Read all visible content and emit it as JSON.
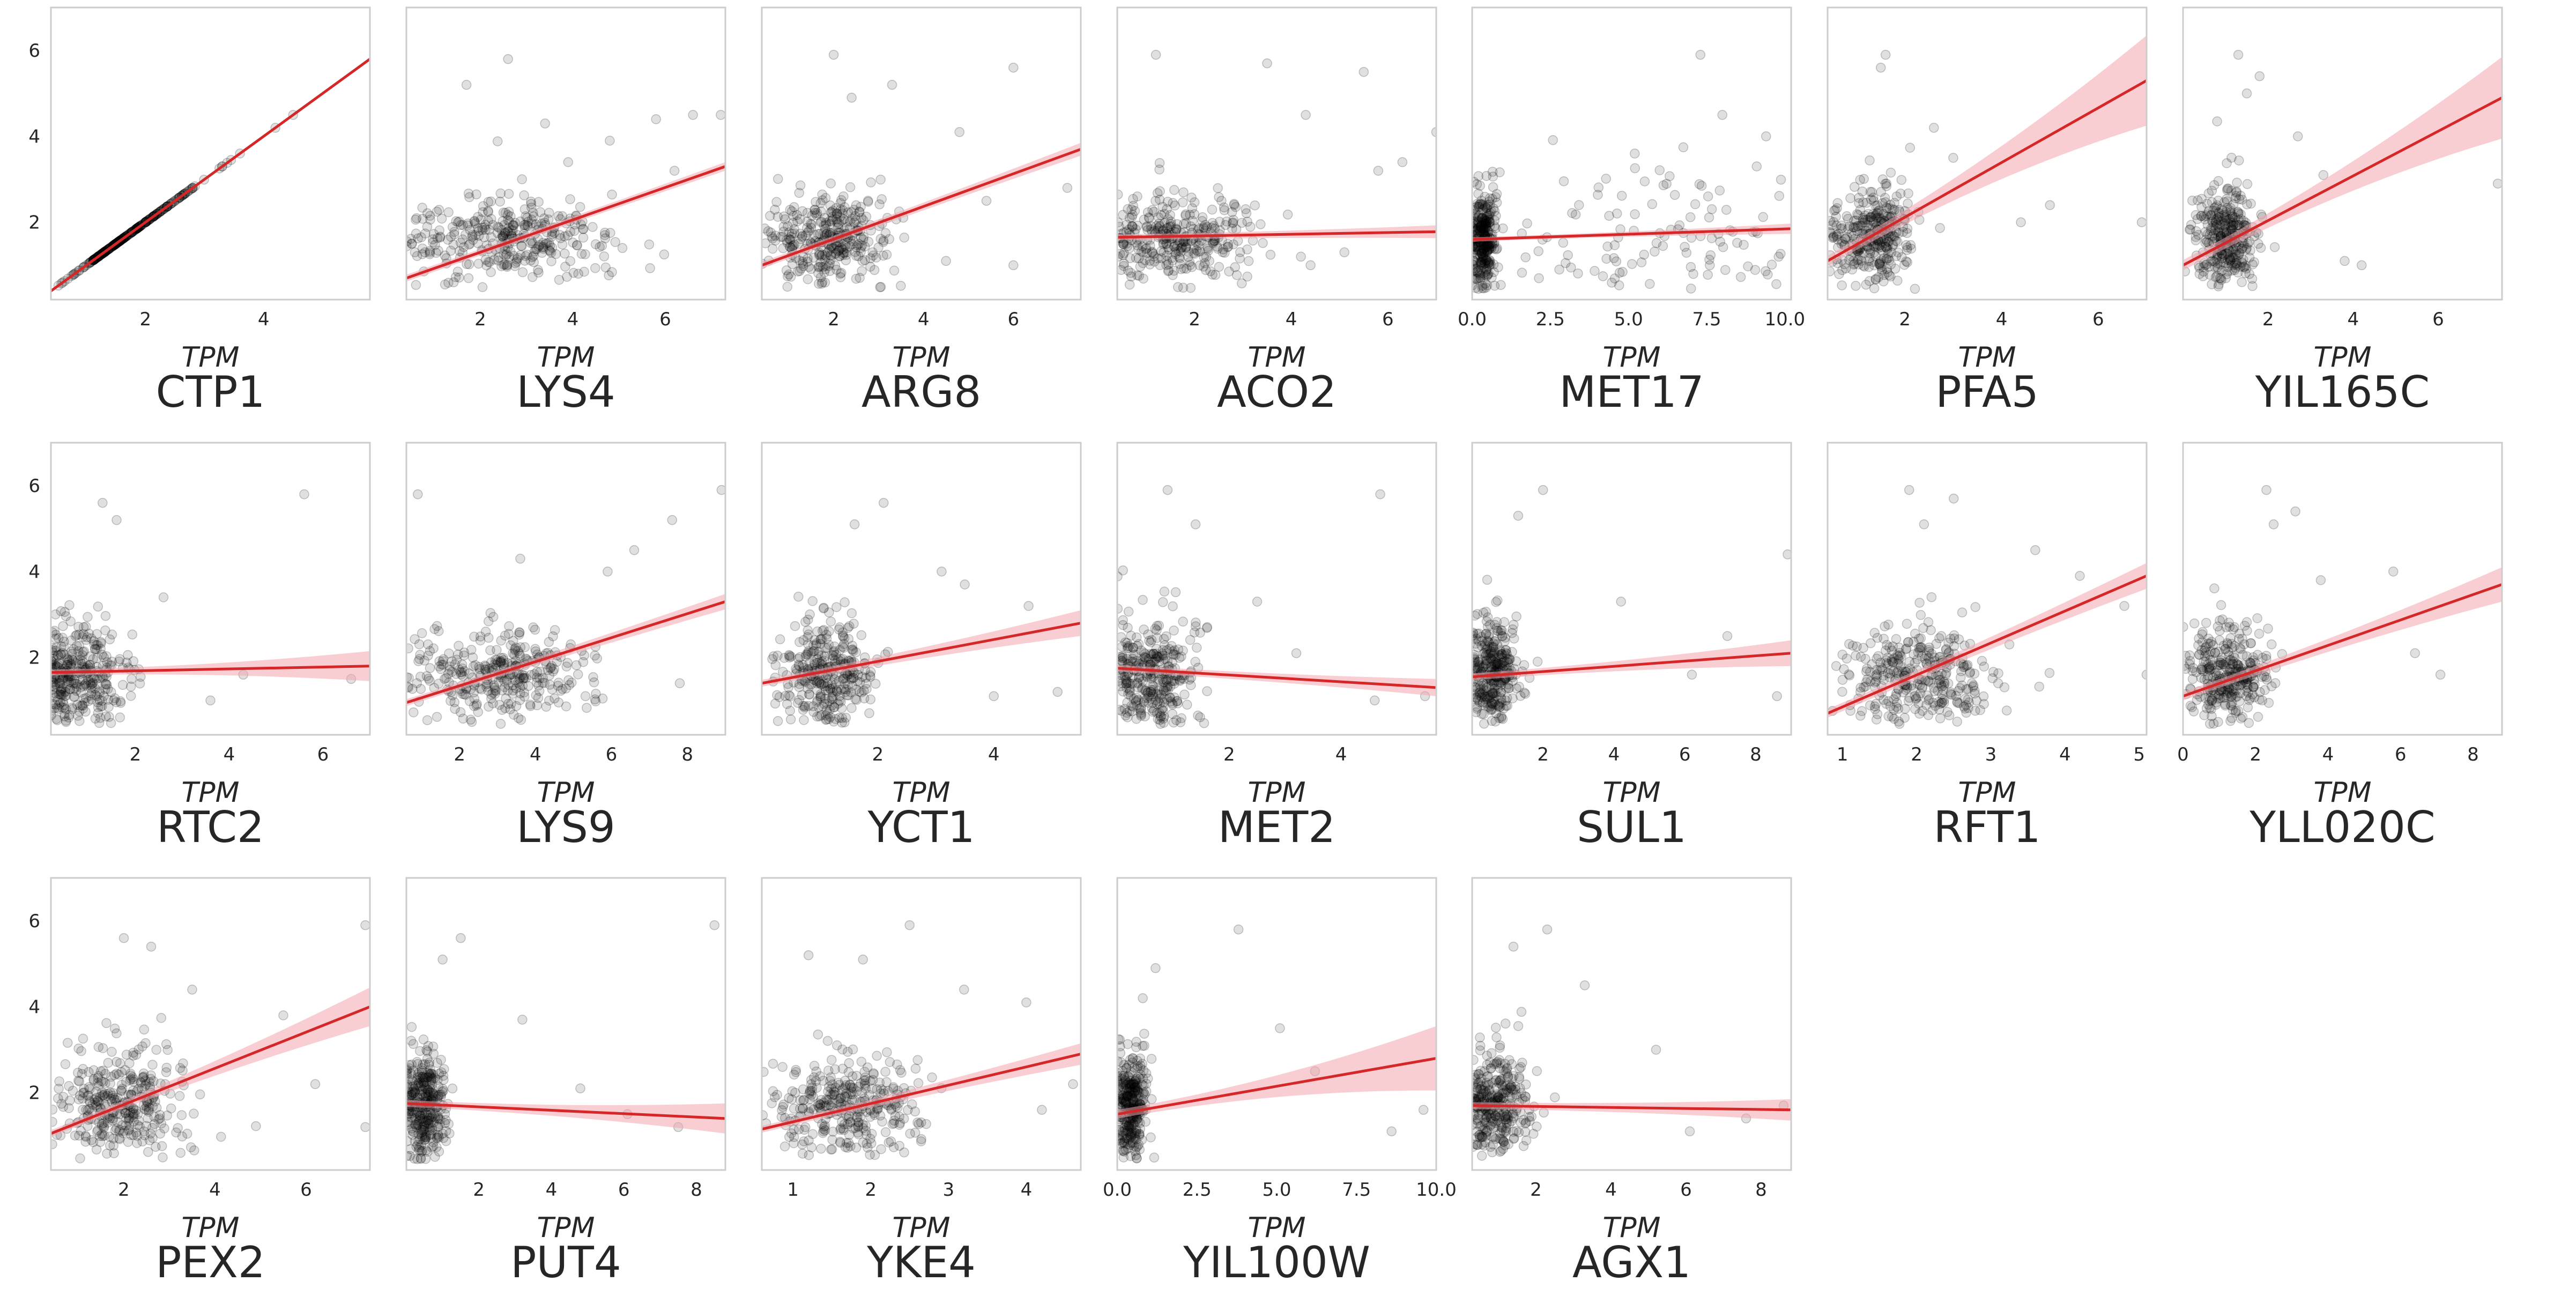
{
  "figure": {
    "row_label": "CTP1",
    "y_unit": "TPM",
    "x_unit": "TPM",
    "point_color": "#000000",
    "line_color": "#d62728",
    "band_color": "#f4a5ae",
    "frame_color": "#cccccc"
  },
  "chart_data": [
    {
      "type": "scatter",
      "xlabel": "CTP1",
      "x_unit": "TPM",
      "ylabel": "CTP1",
      "y_unit": "TPM",
      "xlim": [
        0.4,
        5.8
      ],
      "ylim": [
        0.2,
        7.0
      ],
      "xticks": [
        2,
        4
      ],
      "yticks": [
        2,
        4,
        6
      ],
      "identity": true,
      "fit": {
        "x0": 0.4,
        "y0": 0.4,
        "x1": 5.8,
        "y1": 5.8,
        "band0": 0.02,
        "band1": 0.02
      },
      "cloud": {
        "cx": 1.6,
        "cy": 1.6,
        "sx": 0.7,
        "sy": 0.7,
        "n": 260
      },
      "outliers": [
        [
          2.8,
          2.8
        ],
        [
          3.3,
          3.3
        ],
        [
          3.6,
          3.6
        ],
        [
          4.2,
          4.2
        ],
        [
          4.5,
          4.5
        ]
      ]
    },
    {
      "type": "scatter",
      "xlabel": "LYS4",
      "x_unit": "TPM",
      "ylabel": "CTP1",
      "y_unit": "TPM",
      "xlim": [
        0.4,
        7.3
      ],
      "ylim": [
        0.2,
        7.0
      ],
      "xticks": [
        2,
        4,
        6
      ],
      "yticks": [
        2,
        4,
        6
      ],
      "fit": {
        "x0": 0.4,
        "y0": 0.7,
        "x1": 7.3,
        "y1": 3.3,
        "band0": 0.08,
        "band1": 0.1
      },
      "cloud": {
        "cx": 2.6,
        "cy": 1.6,
        "sx": 1.1,
        "sy": 0.6,
        "n": 330
      },
      "outliers": [
        [
          2.6,
          5.8
        ],
        [
          1.7,
          5.2
        ],
        [
          5.8,
          4.4
        ],
        [
          6.6,
          4.5
        ],
        [
          7.2,
          4.5
        ],
        [
          3.4,
          4.3
        ],
        [
          4.8,
          3.9
        ],
        [
          3.9,
          3.4
        ],
        [
          6.2,
          3.2
        ]
      ]
    },
    {
      "type": "scatter",
      "xlabel": "ARG8",
      "x_unit": "TPM",
      "ylabel": "CTP1",
      "y_unit": "TPM",
      "xlim": [
        0.4,
        7.5
      ],
      "ylim": [
        0.2,
        7.0
      ],
      "xticks": [
        2,
        4,
        6
      ],
      "yticks": [
        2,
        4,
        6
      ],
      "fit": {
        "x0": 0.4,
        "y0": 1.0,
        "x1": 7.5,
        "y1": 3.7,
        "band0": 0.08,
        "band1": 0.15
      },
      "cloud": {
        "cx": 1.9,
        "cy": 1.6,
        "sx": 0.7,
        "sy": 0.65,
        "n": 330
      },
      "outliers": [
        [
          2.0,
          5.9
        ],
        [
          6.0,
          5.6
        ],
        [
          3.3,
          5.2
        ],
        [
          2.4,
          4.9
        ],
        [
          4.8,
          4.1
        ],
        [
          4.5,
          1.1
        ],
        [
          6.0,
          1.0
        ],
        [
          5.4,
          2.5
        ],
        [
          7.2,
          2.8
        ]
      ]
    },
    {
      "type": "scatter",
      "xlabel": "ACO2",
      "x_unit": "TPM",
      "ylabel": "CTP1",
      "y_unit": "TPM",
      "xlim": [
        0.4,
        7.0
      ],
      "ylim": [
        0.2,
        7.0
      ],
      "xticks": [
        2,
        4,
        6
      ],
      "yticks": [
        2,
        4,
        6
      ],
      "fit": {
        "x0": 0.4,
        "y0": 1.65,
        "x1": 7.0,
        "y1": 1.78,
        "band0": 0.07,
        "band1": 0.15
      },
      "cloud": {
        "cx": 1.6,
        "cy": 1.6,
        "sx": 0.8,
        "sy": 0.6,
        "n": 330
      },
      "outliers": [
        [
          1.2,
          5.9
        ],
        [
          3.5,
          5.7
        ],
        [
          5.5,
          5.5
        ],
        [
          7.0,
          4.1
        ],
        [
          4.3,
          4.5
        ],
        [
          6.3,
          3.4
        ],
        [
          5.8,
          3.2
        ],
        [
          4.2,
          1.2
        ],
        [
          4.4,
          1.0
        ],
        [
          5.1,
          1.3
        ]
      ]
    },
    {
      "type": "scatter",
      "xlabel": "MET17",
      "x_unit": "TPM",
      "ylabel": "CTP1",
      "y_unit": "TPM",
      "xlim": [
        0.0,
        10.2
      ],
      "ylim": [
        0.2,
        7.0
      ],
      "xticks": [
        0.0,
        2.5,
        5.0,
        7.5,
        10.0
      ],
      "tick_decimals": 1,
      "yticks": [
        2,
        4,
        6
      ],
      "fit": {
        "x0": 0.0,
        "y0": 1.6,
        "x1": 10.2,
        "y1": 1.85,
        "band0": 0.05,
        "band1": 0.12
      },
      "cloud": {
        "cx": 0.35,
        "cy": 1.6,
        "sx": 0.2,
        "sy": 0.7,
        "n": 300
      },
      "spread": {
        "x0": 0.6,
        "x1": 10.0,
        "cy": 1.6,
        "sy": 0.9,
        "n": 110
      },
      "outliers": [
        [
          7.3,
          5.9
        ],
        [
          8.0,
          4.5
        ],
        [
          9.4,
          4.0
        ],
        [
          9.1,
          3.3
        ],
        [
          5.2,
          3.6
        ],
        [
          7.6,
          1.0
        ],
        [
          9.8,
          1.2
        ]
      ]
    },
    {
      "type": "scatter",
      "xlabel": "PFA5",
      "x_unit": "TPM",
      "ylabel": "CTP1",
      "y_unit": "TPM",
      "xlim": [
        0.4,
        7.0
      ],
      "ylim": [
        0.2,
        7.0
      ],
      "xticks": [
        2,
        4,
        6
      ],
      "yticks": [
        2,
        4,
        6
      ],
      "fit": {
        "x0": 0.4,
        "y0": 1.1,
        "x1": 7.0,
        "y1": 5.3,
        "band0": 0.12,
        "band1": 1.05
      },
      "cloud": {
        "cx": 1.3,
        "cy": 1.7,
        "sx": 0.4,
        "sy": 0.7,
        "n": 320
      },
      "outliers": [
        [
          1.6,
          5.9
        ],
        [
          1.5,
          5.6
        ],
        [
          2.6,
          4.2
        ],
        [
          3.0,
          3.5
        ],
        [
          4.4,
          2.0
        ],
        [
          5.0,
          2.4
        ],
        [
          6.9,
          2.0
        ]
      ]
    },
    {
      "type": "scatter",
      "xlabel": "YIL165C",
      "x_unit": "TPM",
      "ylabel": "CTP1",
      "y_unit": "TPM",
      "xlim": [
        0.0,
        7.5
      ],
      "ylim": [
        0.2,
        7.0
      ],
      "xticks": [
        2,
        4,
        6
      ],
      "yticks": [
        2,
        4,
        6
      ],
      "fit": {
        "x0": 0.0,
        "y0": 1.0,
        "x1": 7.5,
        "y1": 4.9,
        "band0": 0.12,
        "band1": 0.95
      },
      "cloud": {
        "cx": 1.0,
        "cy": 1.7,
        "sx": 0.35,
        "sy": 0.7,
        "n": 320
      },
      "outliers": [
        [
          1.3,
          5.9
        ],
        [
          1.8,
          5.4
        ],
        [
          1.5,
          5.0
        ],
        [
          2.7,
          4.0
        ],
        [
          3.8,
          1.1
        ],
        [
          4.2,
          1.0
        ],
        [
          7.4,
          2.9
        ],
        [
          3.3,
          3.1
        ]
      ]
    },
    {
      "type": "scatter",
      "xlabel": "RTC2",
      "x_unit": "TPM",
      "ylabel": "CTP1",
      "y_unit": "TPM",
      "xlim": [
        0.2,
        7.0
      ],
      "ylim": [
        0.2,
        7.0
      ],
      "xticks": [
        2,
        4,
        6
      ],
      "yticks": [
        2,
        4,
        6
      ],
      "fit": {
        "x0": 0.2,
        "y0": 1.65,
        "x1": 7.0,
        "y1": 1.8,
        "band0": 0.07,
        "band1": 0.35
      },
      "cloud": {
        "cx": 0.8,
        "cy": 1.6,
        "sx": 0.5,
        "sy": 0.7,
        "n": 320
      },
      "outliers": [
        [
          1.3,
          5.6
        ],
        [
          1.6,
          5.2
        ],
        [
          5.6,
          5.8
        ],
        [
          2.6,
          3.4
        ],
        [
          3.6,
          1.0
        ],
        [
          4.3,
          1.6
        ],
        [
          6.6,
          1.5
        ]
      ]
    },
    {
      "type": "scatter",
      "xlabel": "LYS9",
      "x_unit": "TPM",
      "ylabel": "CTP1",
      "y_unit": "TPM",
      "xlim": [
        0.6,
        9.0
      ],
      "ylim": [
        0.2,
        7.0
      ],
      "xticks": [
        2,
        4,
        6,
        8
      ],
      "yticks": [
        2,
        4,
        6
      ],
      "fit": {
        "x0": 0.6,
        "y0": 0.95,
        "x1": 9.0,
        "y1": 3.3,
        "band0": 0.08,
        "band1": 0.18
      },
      "cloud": {
        "cx": 3.0,
        "cy": 1.6,
        "sx": 1.3,
        "sy": 0.6,
        "n": 330
      },
      "outliers": [
        [
          0.9,
          5.8
        ],
        [
          8.9,
          5.9
        ],
        [
          7.6,
          5.2
        ],
        [
          3.6,
          4.3
        ],
        [
          5.9,
          4.0
        ],
        [
          6.6,
          4.5
        ],
        [
          7.8,
          1.4
        ]
      ]
    },
    {
      "type": "scatter",
      "xlabel": "YCT1",
      "x_unit": "TPM",
      "ylabel": "CTP1",
      "y_unit": "TPM",
      "xlim": [
        0.0,
        5.5
      ],
      "ylim": [
        0.2,
        7.0
      ],
      "xticks": [
        2,
        4
      ],
      "yticks": [
        2,
        4,
        6
      ],
      "fit": {
        "x0": 0.0,
        "y0": 1.4,
        "x1": 5.5,
        "y1": 2.8,
        "band0": 0.08,
        "band1": 0.3
      },
      "cloud": {
        "cx": 1.1,
        "cy": 1.7,
        "sx": 0.4,
        "sy": 0.75,
        "n": 320
      },
      "outliers": [
        [
          2.1,
          5.6
        ],
        [
          1.6,
          5.1
        ],
        [
          3.1,
          4.0
        ],
        [
          3.5,
          3.7
        ],
        [
          4.0,
          1.1
        ],
        [
          5.1,
          1.2
        ],
        [
          4.6,
          3.2
        ]
      ]
    },
    {
      "type": "scatter",
      "xlabel": "MET2",
      "x_unit": "TPM",
      "ylabel": "CTP1",
      "y_unit": "TPM",
      "xlim": [
        0.0,
        5.7
      ],
      "ylim": [
        0.2,
        7.0
      ],
      "xticks": [
        2,
        4
      ],
      "yticks": [
        2,
        4,
        6
      ],
      "fit": {
        "x0": 0.0,
        "y0": 1.75,
        "x1": 5.7,
        "y1": 1.3,
        "band0": 0.08,
        "band1": 0.2
      },
      "cloud": {
        "cx": 0.6,
        "cy": 1.6,
        "sx": 0.4,
        "sy": 0.8,
        "n": 320
      },
      "outliers": [
        [
          0.9,
          5.9
        ],
        [
          1.4,
          5.1
        ],
        [
          4.7,
          5.8
        ],
        [
          2.5,
          3.3
        ],
        [
          3.2,
          2.1
        ],
        [
          5.5,
          1.1
        ],
        [
          4.6,
          1.0
        ]
      ]
    },
    {
      "type": "scatter",
      "xlabel": "SUL1",
      "x_unit": "TPM",
      "ylabel": "CTP1",
      "y_unit": "TPM",
      "xlim": [
        0.0,
        9.0
      ],
      "ylim": [
        0.2,
        7.0
      ],
      "xticks": [
        2,
        4,
        6,
        8
      ],
      "yticks": [
        2,
        4,
        6
      ],
      "fit": {
        "x0": 0.0,
        "y0": 1.55,
        "x1": 9.0,
        "y1": 2.1,
        "band0": 0.08,
        "band1": 0.3
      },
      "cloud": {
        "cx": 0.6,
        "cy": 1.7,
        "sx": 0.35,
        "sy": 0.85,
        "n": 320
      },
      "outliers": [
        [
          2.0,
          5.9
        ],
        [
          1.3,
          5.3
        ],
        [
          8.9,
          4.4
        ],
        [
          4.2,
          3.3
        ],
        [
          6.2,
          1.6
        ],
        [
          8.6,
          1.1
        ],
        [
          7.2,
          2.5
        ]
      ]
    },
    {
      "type": "scatter",
      "xlabel": "RFT1",
      "x_unit": "TPM",
      "ylabel": "CTP1",
      "y_unit": "TPM",
      "xlim": [
        0.8,
        5.1
      ],
      "ylim": [
        0.2,
        7.0
      ],
      "xticks": [
        1,
        2,
        3,
        4,
        5
      ],
      "yticks": [
        2,
        4,
        6
      ],
      "fit": {
        "x0": 0.8,
        "y0": 0.7,
        "x1": 5.1,
        "y1": 3.9,
        "band0": 0.1,
        "band1": 0.3
      },
      "cloud": {
        "cx": 2.0,
        "cy": 1.6,
        "sx": 0.5,
        "sy": 0.7,
        "n": 330
      },
      "outliers": [
        [
          1.9,
          5.9
        ],
        [
          2.5,
          5.7
        ],
        [
          2.1,
          5.1
        ],
        [
          3.6,
          4.5
        ],
        [
          4.2,
          3.9
        ],
        [
          4.8,
          3.2
        ],
        [
          5.1,
          1.6
        ]
      ]
    },
    {
      "type": "scatter",
      "xlabel": "YLL020C",
      "x_unit": "TPM",
      "ylabel": "CTP1",
      "y_unit": "TPM",
      "xlim": [
        0.0,
        8.8
      ],
      "ylim": [
        0.2,
        7.0
      ],
      "xticks": [
        0,
        2,
        4,
        6,
        8
      ],
      "yticks": [
        2,
        4,
        6
      ],
      "fit": {
        "x0": 0.0,
        "y0": 1.1,
        "x1": 8.8,
        "y1": 3.7,
        "band0": 0.1,
        "band1": 0.4
      },
      "cloud": {
        "cx": 1.3,
        "cy": 1.6,
        "sx": 0.6,
        "sy": 0.7,
        "n": 320
      },
      "outliers": [
        [
          2.3,
          5.9
        ],
        [
          3.1,
          5.4
        ],
        [
          2.5,
          5.1
        ],
        [
          5.8,
          4.0
        ],
        [
          6.4,
          2.1
        ],
        [
          7.1,
          1.6
        ],
        [
          3.8,
          3.8
        ]
      ]
    },
    {
      "type": "scatter",
      "xlabel": "PEX2",
      "x_unit": "TPM",
      "ylabel": "CTP1",
      "y_unit": "TPM",
      "xlim": [
        0.4,
        7.4
      ],
      "ylim": [
        0.2,
        7.0
      ],
      "xticks": [
        2,
        4,
        6
      ],
      "yticks": [
        2,
        4,
        6
      ],
      "fit": {
        "x0": 0.4,
        "y0": 1.05,
        "x1": 7.4,
        "y1": 4.0,
        "band0": 0.08,
        "band1": 0.45
      },
      "cloud": {
        "cx": 1.9,
        "cy": 1.7,
        "sx": 0.7,
        "sy": 0.75,
        "n": 330
      },
      "outliers": [
        [
          2.0,
          5.6
        ],
        [
          2.6,
          5.4
        ],
        [
          7.3,
          5.9
        ],
        [
          3.5,
          4.4
        ],
        [
          5.5,
          3.8
        ],
        [
          6.2,
          2.2
        ],
        [
          7.3,
          1.2
        ]
      ]
    },
    {
      "type": "scatter",
      "xlabel": "PUT4",
      "x_unit": "TPM",
      "ylabel": "CTP1",
      "y_unit": "TPM",
      "xlim": [
        0.0,
        8.8
      ],
      "ylim": [
        0.2,
        7.0
      ],
      "xticks": [
        2,
        4,
        6,
        8
      ],
      "yticks": [
        2,
        4,
        6
      ],
      "fit": {
        "x0": 0.0,
        "y0": 1.75,
        "x1": 8.8,
        "y1": 1.4,
        "band0": 0.08,
        "band1": 0.35
      },
      "cloud": {
        "cx": 0.5,
        "cy": 1.7,
        "sx": 0.3,
        "sy": 0.8,
        "n": 320
      },
      "outliers": [
        [
          1.5,
          5.6
        ],
        [
          1.0,
          5.1
        ],
        [
          8.5,
          5.9
        ],
        [
          3.2,
          3.7
        ],
        [
          4.8,
          2.1
        ],
        [
          7.5,
          1.2
        ],
        [
          6.1,
          1.5
        ]
      ]
    },
    {
      "type": "scatter",
      "xlabel": "YKE4",
      "x_unit": "TPM",
      "ylabel": "CTP1",
      "y_unit": "TPM",
      "xlim": [
        0.6,
        4.7
      ],
      "ylim": [
        0.2,
        7.0
      ],
      "xticks": [
        1,
        2,
        3,
        4
      ],
      "yticks": [
        2,
        4,
        6
      ],
      "fit": {
        "x0": 0.6,
        "y0": 1.15,
        "x1": 4.7,
        "y1": 2.9,
        "band0": 0.08,
        "band1": 0.25
      },
      "cloud": {
        "cx": 1.7,
        "cy": 1.7,
        "sx": 0.45,
        "sy": 0.7,
        "n": 330
      },
      "outliers": [
        [
          1.2,
          5.2
        ],
        [
          2.5,
          5.9
        ],
        [
          1.9,
          5.1
        ],
        [
          3.2,
          4.4
        ],
        [
          4.0,
          4.1
        ],
        [
          4.2,
          1.6
        ],
        [
          4.6,
          2.2
        ]
      ]
    },
    {
      "type": "scatter",
      "xlabel": "YIL100W",
      "x_unit": "TPM",
      "ylabel": "CTP1",
      "y_unit": "TPM",
      "xlim": [
        0.0,
        10.0
      ],
      "ylim": [
        0.2,
        7.0
      ],
      "xticks": [
        0.0,
        2.5,
        5.0,
        7.5,
        10.0
      ],
      "tick_decimals": 1,
      "yticks": [
        2,
        4,
        6
      ],
      "fit": {
        "x0": 0.0,
        "y0": 1.5,
        "x1": 10.0,
        "y1": 2.8,
        "band0": 0.1,
        "band1": 0.75
      },
      "cloud": {
        "cx": 0.45,
        "cy": 1.7,
        "sx": 0.25,
        "sy": 0.8,
        "n": 320
      },
      "outliers": [
        [
          1.2,
          4.9
        ],
        [
          0.8,
          4.2
        ],
        [
          3.8,
          5.8
        ],
        [
          5.1,
          3.5
        ],
        [
          6.2,
          2.5
        ],
        [
          8.6,
          1.1
        ],
        [
          9.6,
          1.6
        ]
      ]
    },
    {
      "type": "scatter",
      "xlabel": "AGX1",
      "x_unit": "TPM",
      "ylabel": "CTP1",
      "y_unit": "TPM",
      "xlim": [
        0.3,
        8.8
      ],
      "ylim": [
        0.2,
        7.0
      ],
      "xticks": [
        2,
        4,
        6,
        8
      ],
      "yticks": [
        2,
        4,
        6
      ],
      "fit": {
        "x0": 0.3,
        "y0": 1.7,
        "x1": 8.8,
        "y1": 1.6,
        "band0": 0.08,
        "band1": 0.25
      },
      "cloud": {
        "cx": 0.9,
        "cy": 1.7,
        "sx": 0.45,
        "sy": 0.8,
        "n": 320
      },
      "outliers": [
        [
          2.3,
          5.8
        ],
        [
          1.4,
          5.4
        ],
        [
          3.3,
          4.5
        ],
        [
          5.2,
          3.0
        ],
        [
          6.1,
          1.1
        ],
        [
          7.6,
          1.4
        ],
        [
          8.6,
          1.7
        ]
      ]
    }
  ]
}
